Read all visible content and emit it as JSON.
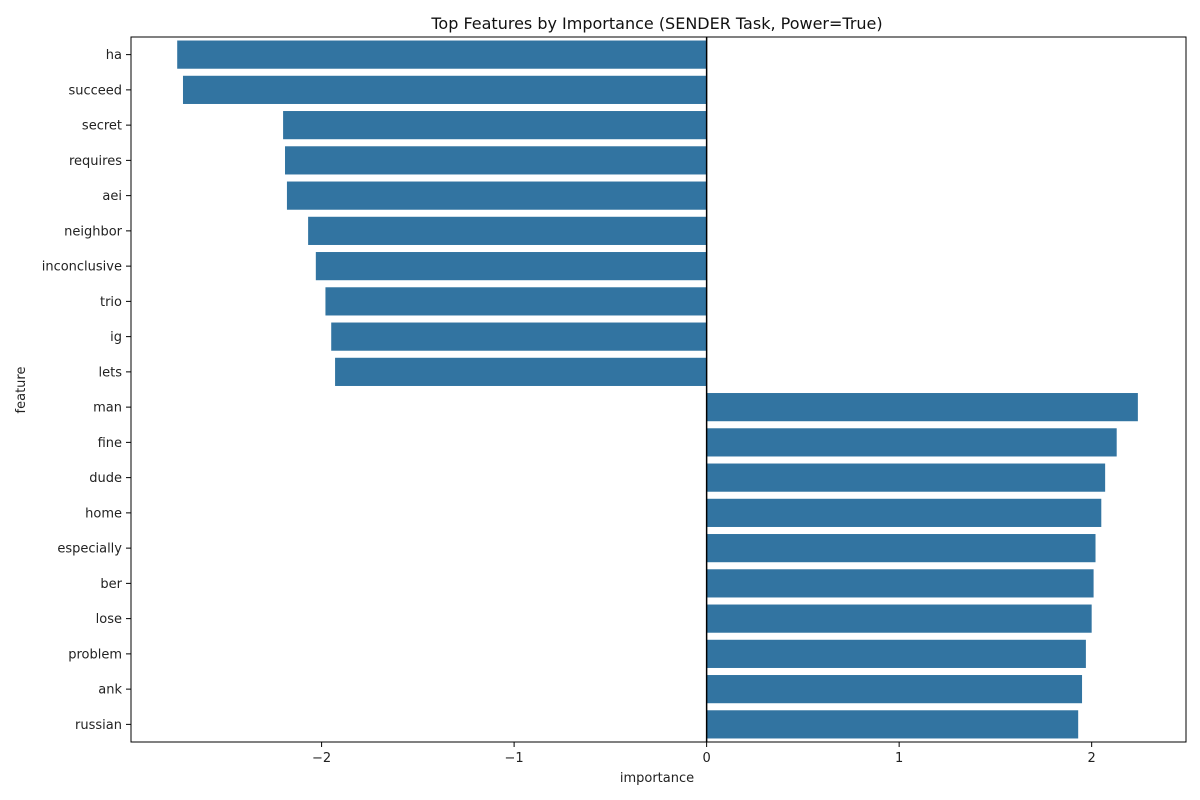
{
  "chart_data": {
    "type": "bar",
    "orientation": "horizontal",
    "title": "Top Features by Importance (SENDER Task, Power=True)",
    "xlabel": "importance",
    "ylabel": "feature",
    "xlim": [
      -2.99,
      2.49
    ],
    "xticks": [
      -2,
      -1,
      0,
      1,
      2
    ],
    "xtick_labels": [
      "−2",
      "−1",
      "0",
      "1",
      "2"
    ],
    "grid": false,
    "bar_color": "#3274a1",
    "categories": [
      "ha",
      "succeed",
      "secret",
      "requires",
      "aei",
      "neighbor",
      "inconclusive",
      "trio",
      "ig",
      "lets",
      "man",
      "fine",
      "dude",
      "home",
      "especially",
      "ber",
      "lose",
      "problem",
      "ank",
      "russian"
    ],
    "values": [
      -2.75,
      -2.72,
      -2.2,
      -2.19,
      -2.18,
      -2.07,
      -2.03,
      -1.98,
      -1.95,
      -1.93,
      2.24,
      2.13,
      2.07,
      2.05,
      2.02,
      2.01,
      2.0,
      1.97,
      1.95,
      1.93
    ]
  }
}
